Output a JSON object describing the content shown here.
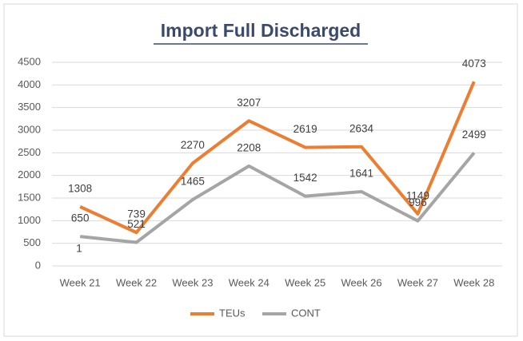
{
  "chart_data": {
    "type": "line",
    "title": "Import Full Discharged",
    "categories": [
      "Week 21",
      "Week 22",
      "Week 23",
      "Week 24",
      "Week 25",
      "Week 26",
      "Week 27",
      "Week 28"
    ],
    "series": [
      {
        "name": "TEUs",
        "color": "#ed7d31",
        "values": [
          1308,
          739,
          2270,
          3207,
          2619,
          2634,
          1149,
          4073
        ]
      },
      {
        "name": "CONT",
        "color": "#a5a5a5",
        "values": [
          650,
          521,
          1465,
          2208,
          1542,
          1641,
          996,
          2499
        ]
      }
    ],
    "annotations": [
      "1"
    ],
    "ylim": [
      0,
      4500
    ],
    "yticks": [
      0,
      500,
      1000,
      1500,
      2000,
      2500,
      3000,
      3500,
      4000,
      4500
    ],
    "grid": true,
    "legend": "bottom",
    "data_labels": true
  }
}
